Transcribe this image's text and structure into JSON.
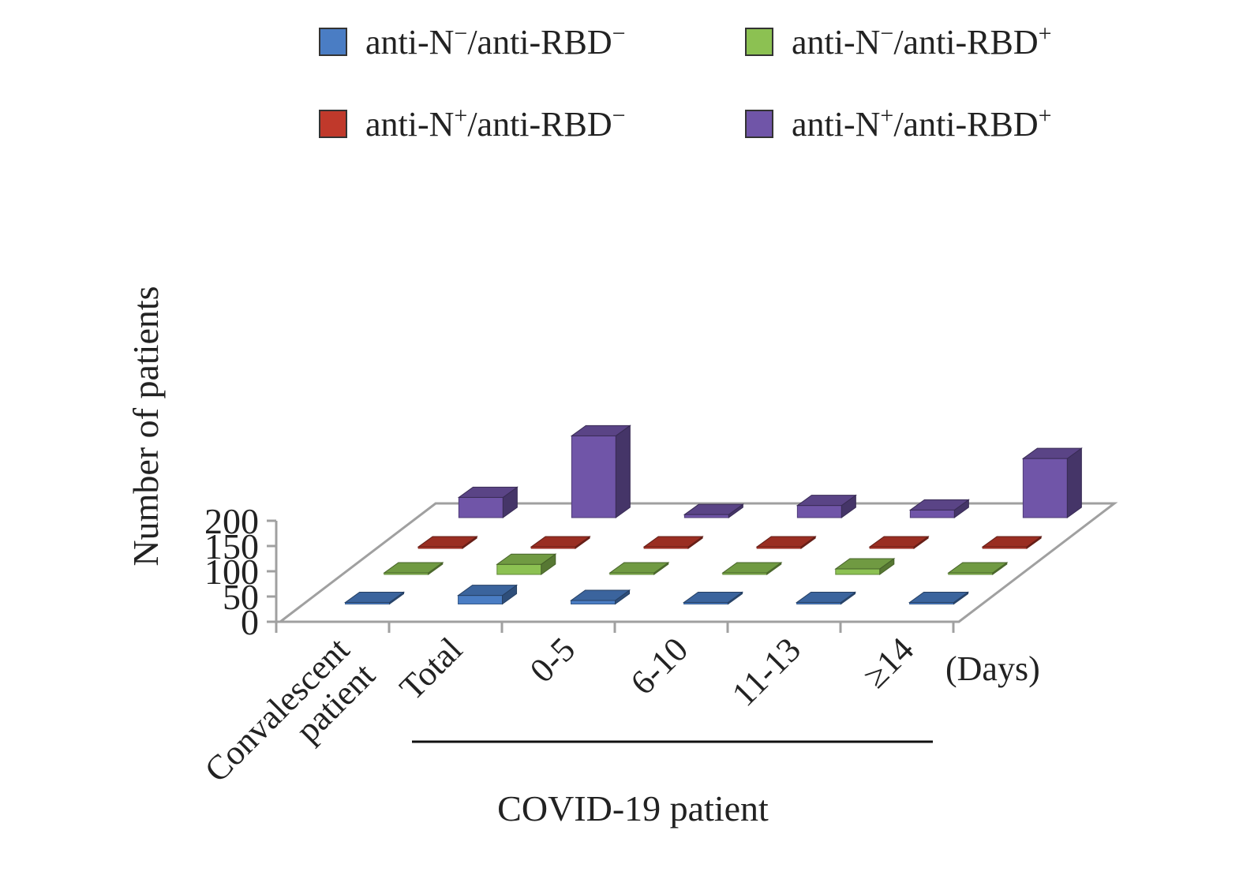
{
  "chart_data": {
    "type": "bar",
    "variant": "3d-grouped-depth",
    "categories": [
      "Convalescent patient",
      "Total",
      "0-5",
      "6-10",
      "11-13",
      "≥14"
    ],
    "category_lines": [
      [
        "Convalescent",
        "patient"
      ],
      [
        "Total"
      ],
      [
        "0-5"
      ],
      [
        "6-10"
      ],
      [
        "11-13"
      ],
      [
        "≥14"
      ]
    ],
    "days_unit": "(Days)",
    "group_label": "COVID-19 patient",
    "ylabel": "Number of patients",
    "ylim": [
      0,
      200
    ],
    "yticks": [
      "0",
      "50",
      "100",
      "150",
      "200"
    ],
    "grid": false,
    "legend_position": "top",
    "series": [
      {
        "name": "anti-N⁻/anti-RBD⁻",
        "legend": {
          "n": "−",
          "rbd": "−"
        },
        "color": "#4a7dc4",
        "values": [
          3,
          17,
          7,
          3,
          0,
          3
        ]
      },
      {
        "name": "anti-N⁻/anti-RBD⁺",
        "legend": {
          "n": "−",
          "rbd": "+"
        },
        "color": "#8cc152",
        "values": [
          1,
          20,
          3,
          0,
          11,
          1
        ]
      },
      {
        "name": "anti-N⁺/anti-RBD⁻",
        "legend": {
          "n": "+",
          "rbd": "−"
        },
        "color": "#c0392b",
        "values": [
          0,
          0,
          0,
          0,
          0,
          0
        ]
      },
      {
        "name": "anti-N⁺/anti-RBD⁺",
        "legend": {
          "n": "+",
          "rbd": "+"
        },
        "color": "#7055a8",
        "values": [
          40,
          162,
          6,
          24,
          15,
          117
        ]
      }
    ]
  }
}
